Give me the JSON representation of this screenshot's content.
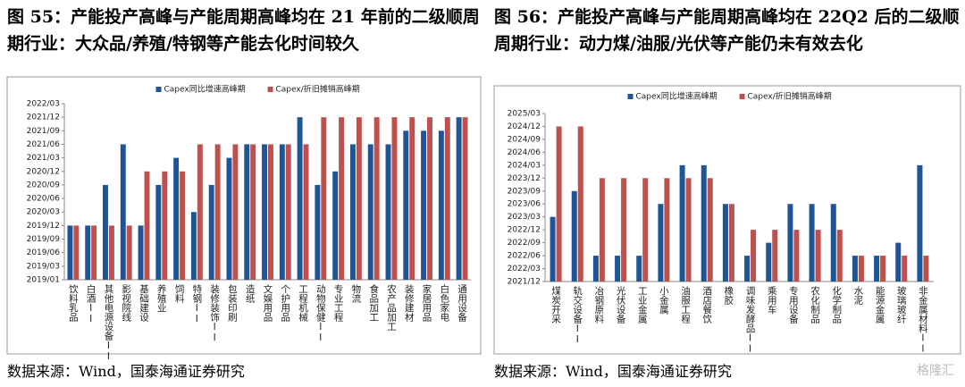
{
  "chart_data": [
    {
      "type": "bar",
      "title": "图 55：产能投产高峰与产能周期高峰均在 21 年前的二级顺周期行业：大众品/养殖/特钢等产能去化时间较久",
      "source": "数据来源：Wind，国泰海通证券研究",
      "categories": [
        "饮料乳品",
        "白酒II",
        "其他电源设备II",
        "影视院线",
        "基础建设",
        "养殖业",
        "饲料",
        "特钢II",
        "装修装饰II",
        "包装印刷",
        "造纸",
        "文娱用品",
        "个护用品",
        "工程机械",
        "动物保健II",
        "专业工程",
        "物流",
        "食品加工",
        "农产品加工",
        "装修建材",
        "家居用品",
        "白色家电",
        "通用设备"
      ],
      "series": [
        {
          "name": "Capex同比增速高峰期",
          "color": "#1f5597",
          "values": [
            4,
            4,
            7,
            10,
            4,
            7,
            9,
            5,
            7,
            9,
            10,
            10,
            10,
            12,
            7,
            8,
            10,
            10,
            10,
            11,
            11,
            11,
            12
          ]
        },
        {
          "name": "Capex/折旧摊销高峰期",
          "color": "#c0504d",
          "values": [
            4,
            4,
            4,
            4,
            8,
            8,
            8,
            10,
            10,
            10,
            10,
            10,
            10,
            10,
            12,
            12,
            12,
            12,
            12,
            12,
            12,
            12,
            12
          ]
        }
      ],
      "ylim": [
        0,
        13
      ],
      "yticks": [
        {
          "value": 0,
          "label": "2019/01"
        },
        {
          "value": 1,
          "label": "2019/03"
        },
        {
          "value": 2,
          "label": "2019/06"
        },
        {
          "value": 3,
          "label": "2019/09"
        },
        {
          "value": 4,
          "label": "2019/12"
        },
        {
          "value": 5,
          "label": "2020/03"
        },
        {
          "value": 6,
          "label": "2020/06"
        },
        {
          "value": 7,
          "label": "2020/09"
        },
        {
          "value": 8,
          "label": "2020/12"
        },
        {
          "value": 9,
          "label": "2021/03"
        },
        {
          "value": 10,
          "label": "2021/06"
        },
        {
          "value": 11,
          "label": "2021/09"
        },
        {
          "value": 12,
          "label": "2021/12"
        },
        {
          "value": 13,
          "label": "2022/03"
        }
      ],
      "grid": false,
      "legend": "top"
    },
    {
      "type": "bar",
      "title": "图 56：产能投产高峰与产能周期高峰均在 22Q2 后的二级顺周期行业：动力煤/油服/光伏等产能仍未有效去化",
      "source": "数据来源：Wind，国泰海通证券研究",
      "categories": [
        "煤炭开采",
        "轨交设备II",
        "冶钢原料",
        "光伏设备",
        "工业金属",
        "小金属",
        "油服工程",
        "酒店餐饮",
        "橡胶",
        "调味发酵品II",
        "乘用车",
        "专用设备",
        "农化制品",
        "化学制品",
        "水泥",
        "能源金属",
        "玻璃玻纤",
        "非金属材料II"
      ],
      "series": [
        {
          "name": "Capex同比增速高峰期",
          "color": "#1f5597",
          "values": [
            5,
            7,
            2,
            2,
            2,
            6,
            9,
            9,
            6,
            2,
            3,
            6,
            6,
            6,
            2,
            2,
            3,
            9
          ]
        },
        {
          "name": "Capex/折旧摊销高峰期",
          "color": "#c0504d",
          "values": [
            12,
            12,
            8,
            8,
            8,
            8,
            8,
            8,
            6,
            4,
            4,
            4,
            4,
            4,
            2,
            2,
            2,
            2
          ]
        }
      ],
      "ylim": [
        0,
        13
      ],
      "yticks": [
        {
          "value": 0,
          "label": "2021/12"
        },
        {
          "value": 1,
          "label": "2022/03"
        },
        {
          "value": 2,
          "label": "2022/06"
        },
        {
          "value": 3,
          "label": "2022/09"
        },
        {
          "value": 4,
          "label": "2022/12"
        },
        {
          "value": 5,
          "label": "2023/03"
        },
        {
          "value": 6,
          "label": "2023/06"
        },
        {
          "value": 7,
          "label": "2023/09"
        },
        {
          "value": 8,
          "label": "2023/12"
        },
        {
          "value": 9,
          "label": "2024/03"
        },
        {
          "value": 10,
          "label": "2024/06"
        },
        {
          "value": 11,
          "label": "2024/09"
        },
        {
          "value": 12,
          "label": "2024/12"
        },
        {
          "value": 13,
          "label": "2025/03"
        }
      ],
      "grid": false,
      "legend": "top"
    }
  ],
  "watermark": "格隆汇"
}
